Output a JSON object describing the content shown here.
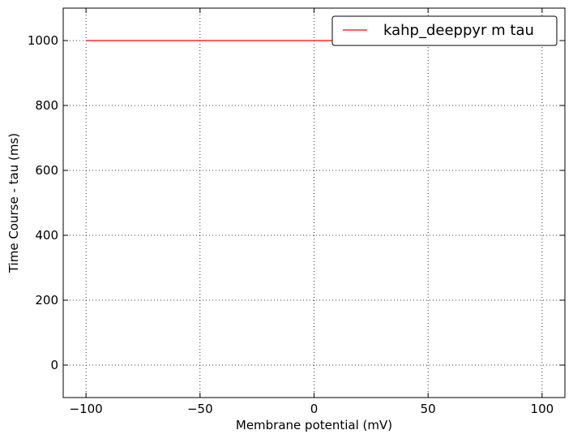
{
  "chart_data": {
    "type": "line",
    "title": "",
    "xlabel": "Membrane potential (mV)",
    "ylabel": "Time Course - tau (ms)",
    "xlim": [
      -110,
      110
    ],
    "ylim": [
      -100,
      1100
    ],
    "xticks": [
      -100,
      -50,
      0,
      50,
      100
    ],
    "yticks": [
      0,
      200,
      400,
      600,
      800,
      1000
    ],
    "xtick_labels": [
      "−100",
      "−50",
      "0",
      "50",
      "100"
    ],
    "ytick_labels": [
      "0",
      "200",
      "400",
      "600",
      "800",
      "1000"
    ],
    "grid": true,
    "legend_position": "top-right",
    "series": [
      {
        "name": "kahp_deeppyr m tau",
        "color": "#ff0000",
        "x": [
          -100,
          100
        ],
        "y": [
          1000,
          1000
        ]
      }
    ]
  }
}
